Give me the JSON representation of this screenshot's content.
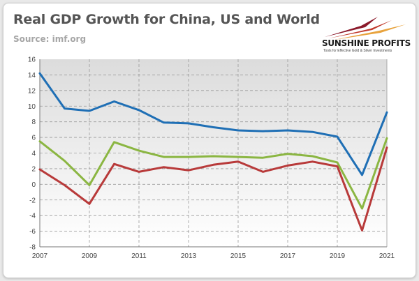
{
  "header": {
    "title": "Real GDP Growth for China, US and World",
    "source": "Source: imf.org"
  },
  "logo": {
    "name": "SUNSHINE PROFITS",
    "tagline": "Tools for Effective Gold & Silver Investments",
    "colors": [
      "#8b1a2b",
      "#c0392b",
      "#e8a33d"
    ]
  },
  "chart_data": {
    "type": "line",
    "title": "Real GDP Growth for China, US and World",
    "subtitle": "Source: imf.org",
    "x": [
      2007,
      2008,
      2009,
      2010,
      2011,
      2012,
      2013,
      2014,
      2015,
      2016,
      2017,
      2018,
      2019,
      2020,
      2021
    ],
    "x_tick_labels": [
      "2007",
      "2009",
      "2011",
      "2013",
      "2015",
      "2017",
      "2019",
      "2021"
    ],
    "y_tick_labels": [
      "16",
      "14",
      "12",
      "10",
      "8",
      "6",
      "4",
      "2",
      "0",
      "-2",
      "-4",
      "-6",
      "-8"
    ],
    "xlim": [
      2007,
      2021
    ],
    "ylim": [
      -8,
      16
    ],
    "grid": "dashed vertical and horizontal",
    "legend": "none",
    "plot_background": "gradient light gray",
    "series": [
      {
        "color": "#1f6fb5",
        "values": [
          14.2,
          9.7,
          9.4,
          10.6,
          9.5,
          7.9,
          7.8,
          7.3,
          6.9,
          6.8,
          6.9,
          6.7,
          6.1,
          1.2,
          9.2
        ]
      },
      {
        "color": "#8bb642",
        "values": [
          5.5,
          3.0,
          -0.1,
          5.4,
          4.3,
          3.5,
          3.5,
          3.6,
          3.5,
          3.4,
          3.9,
          3.6,
          2.8,
          -3.1,
          5.9
        ]
      },
      {
        "color": "#b83a3a",
        "values": [
          1.9,
          -0.1,
          -2.5,
          2.6,
          1.6,
          2.2,
          1.8,
          2.5,
          2.9,
          1.6,
          2.4,
          2.9,
          2.3,
          -5.9,
          4.7
        ]
      }
    ]
  }
}
